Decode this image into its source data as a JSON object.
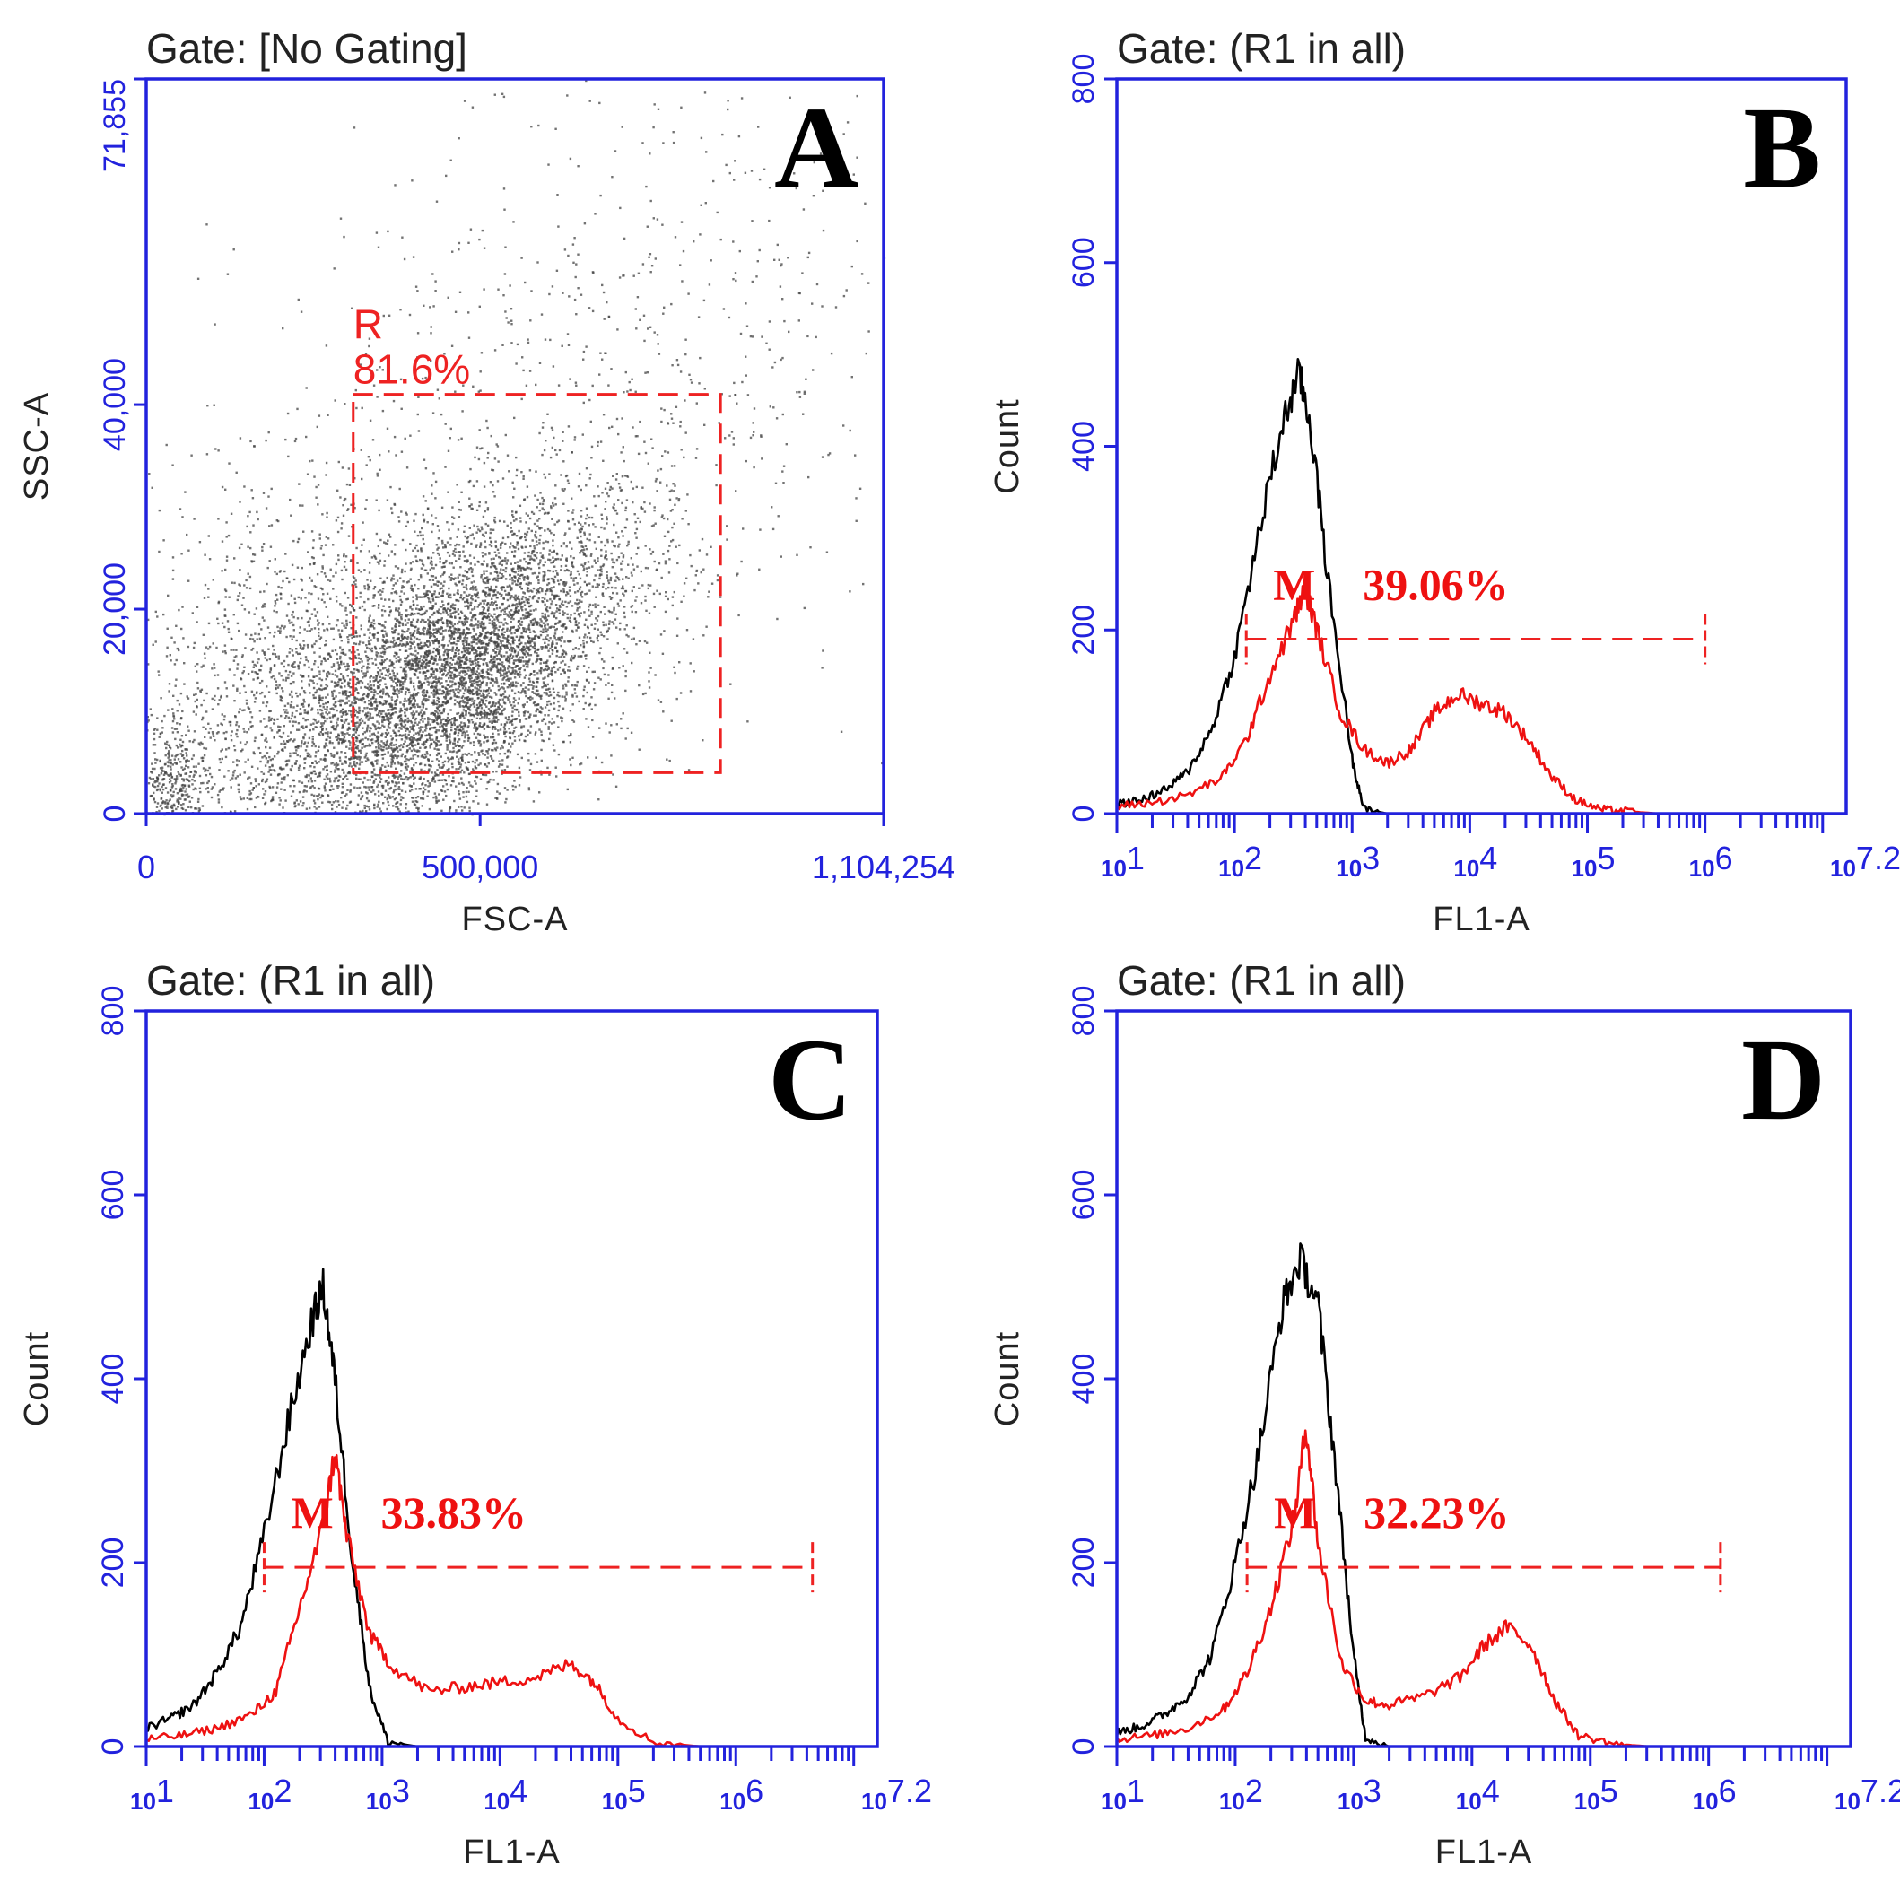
{
  "colors": {
    "axis": "#2222dd",
    "tick_label": "#2222dd",
    "text": "#222222",
    "gate": "#ee2222",
    "control_curve": "#000000",
    "sample_curve": "#ee1111",
    "dots": "#444444"
  },
  "chart_data": [
    {
      "type": "scatter",
      "panel": "A",
      "gate_title": "Gate: [No Gating]",
      "xlabel": "FSC-A",
      "ylabel": "SSC-A",
      "xlim": [
        0,
        1104254
      ],
      "ylim": [
        0,
        71855
      ],
      "x_ticks": [
        {
          "value": 0,
          "label": "0"
        },
        {
          "value": 500000,
          "label": "500,000"
        },
        {
          "value": 1104254,
          "label": "1,104,254"
        }
      ],
      "y_ticks": [
        {
          "value": 0,
          "label": "0"
        },
        {
          "value": 20000,
          "label": "20,000"
        },
        {
          "value": 40000,
          "label": "40,000"
        },
        {
          "value": 71855,
          "label": "71,855"
        }
      ],
      "gate": {
        "name": "R",
        "percent": "81.6%",
        "x_range": [
          310000,
          860000
        ],
        "y_range": [
          4000,
          41000
        ]
      },
      "clusters": [
        {
          "cx": 460000,
          "cy": 14000,
          "sx": 130000,
          "sy": 8000,
          "rho": 0.55,
          "share": 0.7
        },
        {
          "cx": 200000,
          "cy": 12000,
          "sx": 130000,
          "sy": 11000,
          "rho": 0.3,
          "share": 0.16
        },
        {
          "cx": 40000,
          "cy": 3000,
          "sx": 25000,
          "sy": 3000,
          "rho": 0.2,
          "share": 0.04
        },
        {
          "cx": 650000,
          "cy": 40000,
          "sx": 270000,
          "sy": 18000,
          "rho": 0.3,
          "share": 0.1
        }
      ]
    },
    {
      "type": "line",
      "panel": "B",
      "gate_title": "Gate: (R1 in all)",
      "xlabel": "FL1-A",
      "ylabel": "Count",
      "x_scale": "log",
      "xlim": [
        10,
        15849
      ],
      "ylim": [
        0,
        800
      ],
      "y_ticks": [
        0,
        200,
        400,
        600,
        800
      ],
      "x_tick_labels": [
        {
          "base": "10",
          "exp": "1"
        },
        {
          "base": "10",
          "exp": "2"
        },
        {
          "base": "10",
          "exp": "3"
        },
        {
          "base": "10",
          "exp": "4"
        },
        {
          "base": "10",
          "exp": "5"
        },
        {
          "base": "10",
          "exp": "6"
        },
        {
          "base": "10",
          "exp": "7.2"
        }
      ],
      "marker": {
        "label": "M",
        "percent": "39.06%",
        "x_range": [
          1.1,
          5.0
        ],
        "y": 190
      },
      "series": [
        {
          "role": "control",
          "x": [
            1.0,
            1.2,
            1.4,
            1.6,
            1.8,
            2.0,
            2.2,
            2.4,
            2.55,
            2.65,
            2.8,
            3.0,
            3.1,
            3.3,
            3.6,
            4.0,
            4.5
          ],
          "y": [
            10,
            15,
            25,
            45,
            90,
            170,
            300,
            420,
            480,
            420,
            250,
            60,
            5,
            0,
            0,
            0,
            0
          ]
        },
        {
          "role": "sample",
          "x": [
            1.0,
            1.3,
            1.6,
            1.9,
            2.1,
            2.3,
            2.5,
            2.6,
            2.7,
            2.9,
            3.1,
            3.3,
            3.5,
            3.7,
            3.9,
            4.1,
            4.3,
            4.5,
            4.7,
            4.9,
            5.1,
            5.3,
            5.6
          ],
          "y": [
            8,
            12,
            20,
            40,
            80,
            150,
            210,
            245,
            200,
            110,
            70,
            55,
            70,
            110,
            130,
            120,
            110,
            80,
            40,
            15,
            5,
            3,
            0
          ]
        }
      ]
    },
    {
      "type": "line",
      "panel": "C",
      "gate_title": "Gate: (R1 in all)",
      "xlabel": "FL1-A",
      "ylabel": "Count",
      "x_scale": "log",
      "xlim": [
        10,
        15849
      ],
      "ylim": [
        0,
        800
      ],
      "y_ticks": [
        0,
        200,
        400,
        600,
        800
      ],
      "x_tick_labels": [
        {
          "base": "10",
          "exp": "1"
        },
        {
          "base": "10",
          "exp": "2"
        },
        {
          "base": "10",
          "exp": "3"
        },
        {
          "base": "10",
          "exp": "4"
        },
        {
          "base": "10",
          "exp": "5"
        },
        {
          "base": "10",
          "exp": "6"
        },
        {
          "base": "10",
          "exp": "7.2"
        }
      ],
      "marker": {
        "label": "M",
        "percent": "33.83%",
        "x_range": [
          1.0,
          5.65
        ],
        "y": 195
      },
      "series": [
        {
          "role": "control",
          "x": [
            1.0,
            1.2,
            1.4,
            1.6,
            1.8,
            2.0,
            2.2,
            2.4,
            2.5,
            2.6,
            2.75,
            2.9,
            3.05,
            3.3,
            4.0,
            5.0,
            6.0
          ],
          "y": [
            20,
            30,
            45,
            80,
            130,
            230,
            350,
            460,
            500,
            400,
            200,
            60,
            5,
            0,
            0,
            0,
            0
          ]
        },
        {
          "role": "sample",
          "x": [
            1.0,
            1.3,
            1.6,
            1.9,
            2.1,
            2.3,
            2.5,
            2.6,
            2.7,
            2.9,
            3.1,
            3.4,
            3.7,
            4.0,
            4.3,
            4.6,
            4.8,
            5.0,
            5.3,
            5.7,
            6.0
          ],
          "y": [
            8,
            12,
            20,
            35,
            60,
            150,
            240,
            320,
            230,
            120,
            85,
            60,
            65,
            70,
            75,
            90,
            70,
            30,
            5,
            0,
            0
          ]
        }
      ]
    },
    {
      "type": "line",
      "panel": "D",
      "gate_title": "Gate: (R1 in all)",
      "xlabel": "FL1-A",
      "ylabel": "Count",
      "x_scale": "log",
      "xlim": [
        10,
        15849
      ],
      "ylim": [
        0,
        800
      ],
      "y_ticks": [
        0,
        200,
        400,
        600,
        800
      ],
      "x_tick_labels": [
        {
          "base": "10",
          "exp": "1"
        },
        {
          "base": "10",
          "exp": "2"
        },
        {
          "base": "10",
          "exp": "3"
        },
        {
          "base": "10",
          "exp": "4"
        },
        {
          "base": "10",
          "exp": "5"
        },
        {
          "base": "10",
          "exp": "6"
        },
        {
          "base": "10",
          "exp": "7.2"
        }
      ],
      "marker": {
        "label": "M",
        "percent": "32.23%",
        "x_range": [
          1.1,
          5.1
        ],
        "y": 195
      },
      "series": [
        {
          "role": "control",
          "x": [
            1.0,
            1.2,
            1.4,
            1.6,
            1.8,
            2.0,
            2.2,
            2.4,
            2.55,
            2.7,
            2.85,
            3.0,
            3.1,
            3.3,
            4.0,
            5.0,
            6.0
          ],
          "y": [
            15,
            22,
            35,
            55,
            100,
            200,
            320,
            480,
            530,
            480,
            300,
            100,
            10,
            0,
            0,
            0,
            0
          ]
        },
        {
          "role": "sample",
          "x": [
            1.0,
            1.3,
            1.6,
            1.9,
            2.1,
            2.3,
            2.5,
            2.6,
            2.7,
            2.9,
            3.1,
            3.3,
            3.6,
            3.9,
            4.1,
            4.3,
            4.5,
            4.7,
            4.9,
            5.2,
            5.5,
            5.8
          ],
          "y": [
            8,
            12,
            20,
            40,
            80,
            150,
            250,
            350,
            220,
            90,
            50,
            45,
            55,
            75,
            110,
            130,
            110,
            50,
            12,
            3,
            0,
            0
          ]
        }
      ]
    }
  ]
}
